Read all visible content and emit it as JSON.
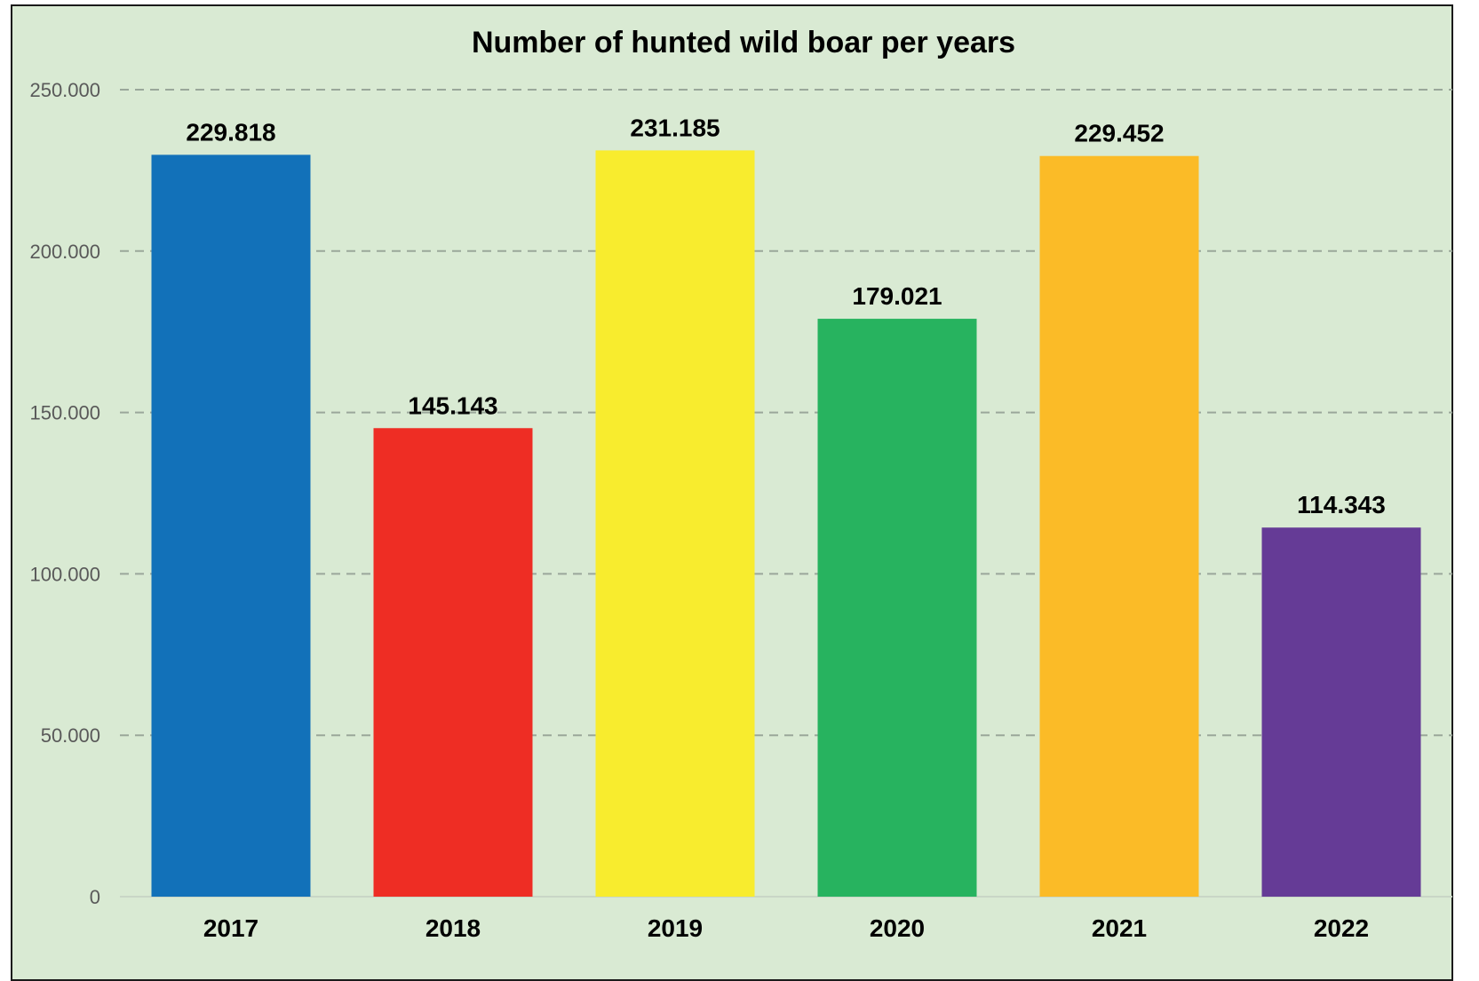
{
  "chart_data": {
    "type": "bar",
    "title": "Number of hunted wild boar per years",
    "xlabel": "",
    "ylabel": "",
    "categories": [
      "2017",
      "2018",
      "2019",
      "2020",
      "2021",
      "2022"
    ],
    "values": [
      229818,
      145143,
      231185,
      179021,
      229452,
      114343
    ],
    "data_labels": [
      "229.818",
      "145.143",
      "231.185",
      "179.021",
      "229.452",
      "114.343"
    ],
    "bar_colors": [
      "#1271b9",
      "#ee2d24",
      "#f8ec2e",
      "#27b35f",
      "#fbbb27",
      "#653b96"
    ],
    "ylim": [
      0,
      250000
    ],
    "y_ticks": [
      0,
      50000,
      100000,
      150000,
      200000,
      250000
    ],
    "y_tick_labels": [
      "0",
      "50.000",
      "100.000",
      "150.000",
      "200.000",
      "250.000"
    ],
    "grid": true,
    "legend": "none",
    "background_color": "#d9ead3"
  }
}
